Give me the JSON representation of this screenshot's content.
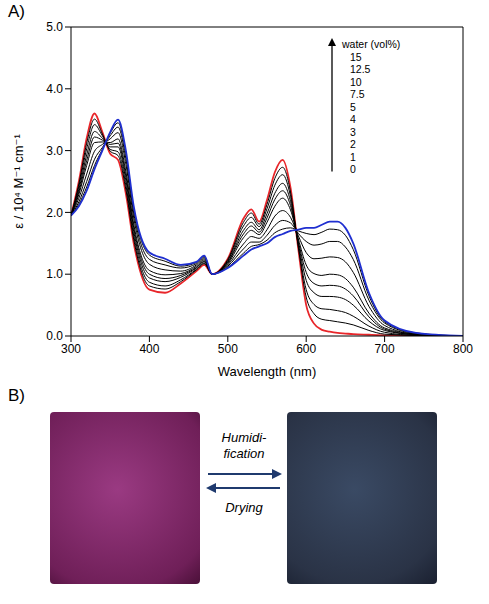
{
  "chart_data": {
    "type": "line",
    "panel_label": "A)",
    "x_label": "Wavelength (nm)",
    "y_label": "ε / 10⁴ M⁻¹ cm⁻¹",
    "legend_title": "water (vol%)",
    "legend": "top-right",
    "x": [
      300,
      310,
      320,
      330,
      340,
      350,
      360,
      370,
      380,
      400,
      420,
      440,
      460,
      470,
      480,
      500,
      520,
      530,
      540,
      550,
      560,
      570,
      580,
      590,
      600,
      610,
      620,
      630,
      640,
      650,
      660,
      680,
      700,
      740,
      800
    ],
    "series": [
      {
        "name": "0",
        "color": "#e8262a",
        "values": [
          1.95,
          2.5,
          3.2,
          3.6,
          3.3,
          2.95,
          2.85,
          2.3,
          1.5,
          0.75,
          0.7,
          0.85,
          1.05,
          1.15,
          1.0,
          1.25,
          1.9,
          2.05,
          1.85,
          2.2,
          2.65,
          2.85,
          2.4,
          1.4,
          0.5,
          0.2,
          0.1,
          0.07,
          0.05,
          0.04,
          0.03,
          0.02,
          0.01,
          0,
          0
        ]
      },
      {
        "name": "1",
        "color": "#000000",
        "values": [
          1.95,
          2.46,
          3.12,
          3.51,
          3.27,
          2.99,
          2.92,
          2.37,
          1.56,
          0.81,
          0.76,
          0.88,
          1.07,
          1.17,
          1.0,
          1.24,
          1.84,
          1.99,
          1.81,
          2.13,
          2.55,
          2.73,
          2.33,
          1.43,
          0.63,
          0.36,
          0.27,
          0.25,
          0.23,
          0.21,
          0.18,
          0.09,
          0.03,
          0.01,
          0
        ]
      },
      {
        "name": "2",
        "color": "#000000",
        "values": [
          1.95,
          2.42,
          3.03,
          3.42,
          3.24,
          3.02,
          2.98,
          2.44,
          1.62,
          0.87,
          0.81,
          0.91,
          1.08,
          1.18,
          1.0,
          1.22,
          1.78,
          1.92,
          1.77,
          2.06,
          2.44,
          2.61,
          2.26,
          1.46,
          0.75,
          0.51,
          0.44,
          0.43,
          0.41,
          0.38,
          0.32,
          0.16,
          0.06,
          0.01,
          0
        ]
      },
      {
        "name": "3",
        "color": "#000000",
        "values": [
          1.95,
          2.37,
          2.93,
          3.31,
          3.2,
          3.06,
          3.06,
          2.52,
          1.69,
          0.94,
          0.88,
          0.95,
          1.1,
          1.2,
          1.0,
          1.2,
          1.71,
          1.84,
          1.72,
          1.98,
          2.31,
          2.47,
          2.18,
          1.5,
          0.9,
          0.7,
          0.64,
          0.64,
          0.63,
          0.59,
          0.5,
          0.24,
          0.09,
          0.02,
          0
        ]
      },
      {
        "name": "4",
        "color": "#000000",
        "values": [
          1.95,
          2.33,
          2.84,
          3.22,
          3.17,
          3.1,
          3.12,
          2.59,
          1.75,
          1.0,
          0.93,
          0.98,
          1.11,
          1.21,
          1.0,
          1.19,
          1.65,
          1.78,
          1.68,
          1.91,
          2.21,
          2.35,
          2.11,
          1.53,
          1.03,
          0.85,
          0.81,
          0.82,
          0.81,
          0.76,
          0.65,
          0.31,
          0.11,
          0.02,
          0
        ]
      },
      {
        "name": "5",
        "color": "#000000",
        "values": [
          1.95,
          2.29,
          2.76,
          3.13,
          3.14,
          3.13,
          3.19,
          2.66,
          1.81,
          1.06,
          0.99,
          1.01,
          1.13,
          1.23,
          1.0,
          1.17,
          1.59,
          1.71,
          1.64,
          1.84,
          2.1,
          2.23,
          2.04,
          1.57,
          1.15,
          1.01,
          0.98,
          1.0,
          0.99,
          0.93,
          0.79,
          0.37,
          0.13,
          0.03,
          0
        ]
      },
      {
        "name": "7.5",
        "color": "#000000",
        "values": [
          1.95,
          2.23,
          2.62,
          2.99,
          3.1,
          3.19,
          3.29,
          2.78,
          1.91,
          1.16,
          1.07,
          1.05,
          1.15,
          1.25,
          1.0,
          1.15,
          1.49,
          1.61,
          1.58,
          1.72,
          1.94,
          2.03,
          1.92,
          1.62,
          1.35,
          1.25,
          1.26,
          1.28,
          1.27,
          1.2,
          1.03,
          0.48,
          0.17,
          0.03,
          0
        ]
      },
      {
        "name": "10",
        "color": "#000000",
        "values": [
          1.95,
          2.17,
          2.5,
          2.86,
          3.05,
          3.24,
          3.38,
          2.87,
          1.99,
          1.24,
          1.15,
          1.1,
          1.17,
          1.27,
          1.0,
          1.13,
          1.41,
          1.52,
          1.52,
          1.63,
          1.79,
          1.87,
          1.83,
          1.66,
          1.53,
          1.47,
          1.49,
          1.53,
          1.53,
          1.44,
          1.24,
          0.58,
          0.21,
          0.04,
          0
        ]
      },
      {
        "name": "12.5",
        "color": "#000000",
        "values": [
          1.95,
          2.13,
          2.41,
          2.76,
          3.02,
          3.28,
          3.45,
          2.95,
          2.06,
          1.31,
          1.21,
          1.13,
          1.19,
          1.29,
          1.0,
          1.11,
          1.34,
          1.45,
          1.48,
          1.55,
          1.67,
          1.73,
          1.75,
          1.7,
          1.66,
          1.64,
          1.68,
          1.73,
          1.72,
          1.63,
          1.4,
          0.65,
          0.23,
          0.05,
          0
        ]
      },
      {
        "name": "15",
        "color": "#1f2fd0",
        "values": [
          1.95,
          2.1,
          2.35,
          2.7,
          3.0,
          3.3,
          3.5,
          3.0,
          2.1,
          1.35,
          1.25,
          1.15,
          1.2,
          1.3,
          1.0,
          1.1,
          1.3,
          1.4,
          1.45,
          1.5,
          1.6,
          1.65,
          1.7,
          1.72,
          1.75,
          1.75,
          1.8,
          1.85,
          1.85,
          1.75,
          1.5,
          0.7,
          0.25,
          0.05,
          0
        ]
      }
    ],
    "xlim": [
      300,
      800
    ],
    "xticks": [
      300,
      400,
      500,
      600,
      700,
      800
    ],
    "ylim": [
      0,
      5
    ],
    "yticks": [
      {
        "value": 0,
        "label": "0.0"
      },
      {
        "value": 1,
        "label": "1.0"
      },
      {
        "value": 2,
        "label": "2.0"
      },
      {
        "value": 3,
        "label": "3.0"
      },
      {
        "value": 4,
        "label": "4.0"
      },
      {
        "value": 5,
        "label": "5.0"
      }
    ]
  },
  "panel_b": {
    "label": "B)",
    "forward_label": "Humidi-fication",
    "reverse_label": "Drying"
  }
}
